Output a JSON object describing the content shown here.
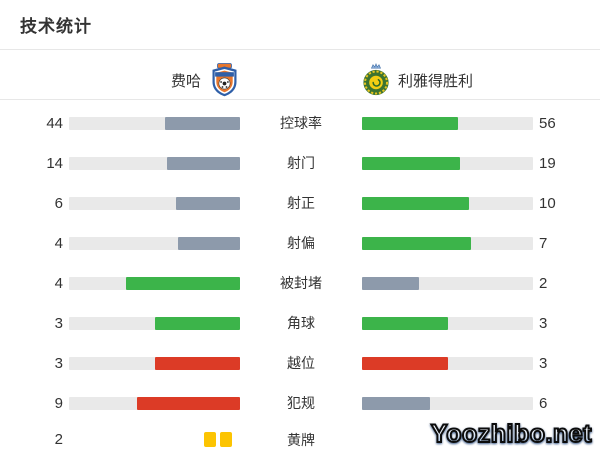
{
  "title": "技术统计",
  "teams": {
    "home": {
      "name": "费哈"
    },
    "away": {
      "name": "利雅得胜利"
    }
  },
  "watermark": "Yoozhibo.net",
  "colors": {
    "green": "#3cb44a",
    "slate": "#8d9aab",
    "red": "#dc3b26",
    "track": "#e9e9e9",
    "yellow_card": "#fcc402",
    "text": "#333333",
    "divider": "#e7e7e7"
  },
  "rows": [
    {
      "label": "控球率",
      "home": 44,
      "away": 56,
      "home_color": "slate",
      "away_color": "green"
    },
    {
      "label": "射门",
      "home": 14,
      "away": 19,
      "home_color": "slate",
      "away_color": "green"
    },
    {
      "label": "射正",
      "home": 6,
      "away": 10,
      "home_color": "slate",
      "away_color": "green"
    },
    {
      "label": "射偏",
      "home": 4,
      "away": 7,
      "home_color": "slate",
      "away_color": "green"
    },
    {
      "label": "被封堵",
      "home": 4,
      "away": 2,
      "home_color": "green",
      "away_color": "slate"
    },
    {
      "label": "角球",
      "home": 3,
      "away": 3,
      "home_color": "green",
      "away_color": "green"
    },
    {
      "label": "越位",
      "home": 3,
      "away": 3,
      "home_color": "red",
      "away_color": "red"
    },
    {
      "label": "犯规",
      "home": 9,
      "away": 6,
      "home_color": "red",
      "away_color": "slate"
    },
    {
      "label": "黄牌",
      "home": 2,
      "away": null,
      "type": "cards",
      "home_cards": 2,
      "away_cards": 0
    }
  ],
  "chart_data": {
    "type": "bar",
    "title": "技术统计",
    "orientation": "horizontal-paired",
    "categories": [
      "控球率",
      "射门",
      "射正",
      "射偏",
      "被封堵",
      "角球",
      "越位",
      "犯规",
      "黄牌"
    ],
    "series": [
      {
        "name": "费哈",
        "values": [
          44,
          14,
          6,
          4,
          4,
          3,
          3,
          9,
          2
        ]
      },
      {
        "name": "利雅得胜利",
        "values": [
          56,
          19,
          10,
          7,
          2,
          3,
          3,
          6,
          null
        ]
      }
    ],
    "notes": "bar length = value / (home+away) of each row; green = leading side, slate = trailing side, red = negative stats (越位/犯规), 黄牌 row rendered as yellow card icons"
  }
}
